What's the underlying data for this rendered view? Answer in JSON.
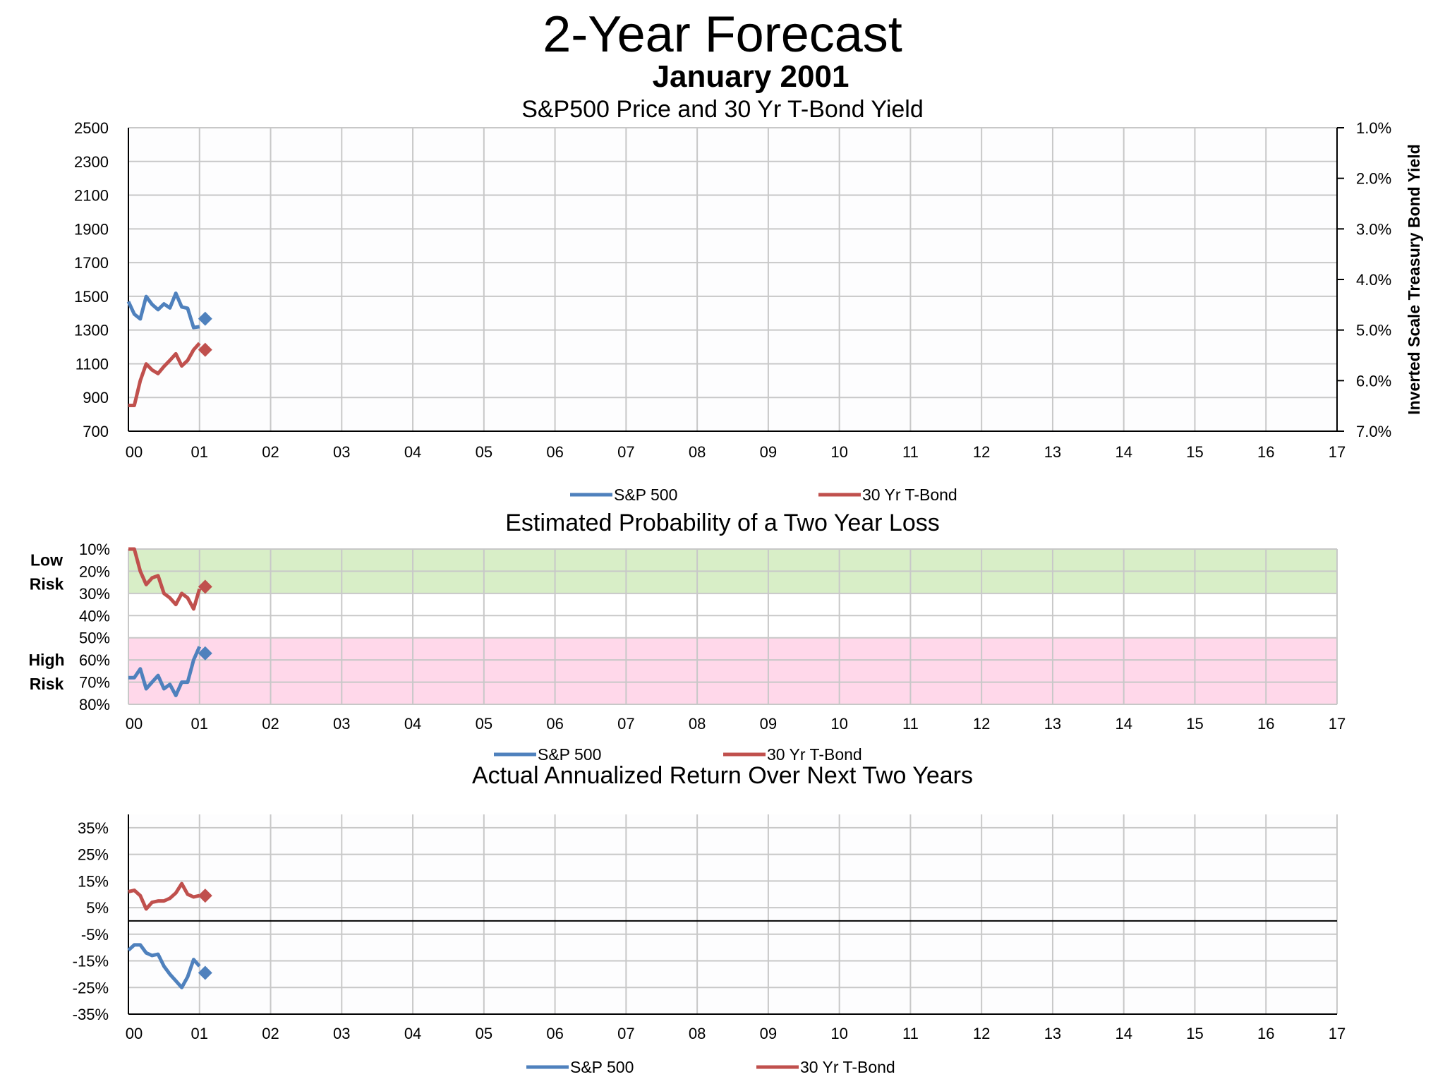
{
  "title": "2-Year Forecast",
  "subtitle": "January 2001",
  "colors": {
    "sp500": "#4f81bd",
    "tbond": "#c0504d",
    "grid": "#c8c8c8",
    "low_risk_band": "#d8eec7",
    "high_risk_band": "#ffd8ea"
  },
  "x_ticks": [
    "00",
    "01",
    "02",
    "03",
    "04",
    "05",
    "06",
    "07",
    "08",
    "09",
    "10",
    "11",
    "12",
    "13",
    "14",
    "15",
    "16",
    "17"
  ],
  "legend": {
    "sp500": "S&P 500",
    "tbond": "30 Yr T-Bond"
  },
  "chart_data": [
    {
      "type": "line",
      "title": "S&P500 Price and 30 Yr T-Bond Yield",
      "xlim": [
        2000.0,
        2017.0
      ],
      "ylim": [
        700,
        2500
      ],
      "y_ticks": [
        "2500",
        "2300",
        "2100",
        "1900",
        "1700",
        "1500",
        "1300",
        "1100",
        "900",
        "700"
      ],
      "y2_label": "Inverted Scale Treasury Bond Yield",
      "y2_ticks": [
        "1.0%",
        "2.0%",
        "3.0%",
        "4.0%",
        "5.0%",
        "6.0%",
        "7.0%"
      ],
      "y2lim": [
        1.0,
        7.0
      ],
      "y2_inverted": true,
      "series": [
        {
          "name": "S&P 500",
          "axis": "left",
          "x": [
            2000.0,
            2000.083,
            2000.167,
            2000.25,
            2000.333,
            2000.417,
            2000.5,
            2000.583,
            2000.667,
            2000.75,
            2000.833,
            2000.917,
            2001.0
          ],
          "values": [
            1469,
            1394,
            1366,
            1499,
            1452,
            1421,
            1455,
            1431,
            1518,
            1437,
            1429,
            1315,
            1320
          ],
          "marker": {
            "x": 2001.08,
            "value": 1367
          }
        },
        {
          "name": "30 Yr T-Bond",
          "axis": "right",
          "x": [
            2000.0,
            2000.083,
            2000.167,
            2000.25,
            2000.333,
            2000.417,
            2000.5,
            2000.583,
            2000.667,
            2000.75,
            2000.833,
            2000.917,
            2001.0
          ],
          "values": [
            6.49,
            6.49,
            6.0,
            5.67,
            5.79,
            5.86,
            5.72,
            5.6,
            5.47,
            5.71,
            5.6,
            5.39,
            5.26
          ],
          "marker": {
            "x": 2001.08,
            "value": 5.39
          }
        }
      ]
    },
    {
      "type": "line",
      "title": "Estimated Probability of a Two Year Loss",
      "xlim": [
        2000.0,
        2017.0
      ],
      "ylim": [
        10,
        80
      ],
      "y_inverted": true,
      "y_ticks": [
        "10%",
        "20%",
        "30%",
        "40%",
        "50%",
        "60%",
        "70%",
        "80%"
      ],
      "zones": [
        {
          "label_lines": [
            "Low",
            "Risk"
          ],
          "from": 10,
          "to": 30
        },
        {
          "label_lines": [
            "High",
            "Risk"
          ],
          "from": 50,
          "to": 80
        }
      ],
      "series": [
        {
          "name": "S&P 500",
          "x": [
            2000.0,
            2000.083,
            2000.167,
            2000.25,
            2000.333,
            2000.417,
            2000.5,
            2000.583,
            2000.667,
            2000.75,
            2000.833,
            2000.917,
            2001.0
          ],
          "values": [
            68,
            68,
            64,
            73,
            70,
            67,
            73,
            71,
            76,
            70,
            70,
            60,
            54
          ],
          "marker": {
            "x": 2001.08,
            "value": 57
          }
        },
        {
          "name": "30 Yr T-Bond",
          "x": [
            2000.0,
            2000.083,
            2000.167,
            2000.25,
            2000.333,
            2000.417,
            2000.5,
            2000.583,
            2000.667,
            2000.75,
            2000.833,
            2000.917,
            2001.0
          ],
          "values": [
            10,
            10,
            20,
            26,
            23,
            22,
            30,
            32,
            35,
            30,
            32,
            37,
            28
          ],
          "marker": {
            "x": 2001.08,
            "value": 27
          }
        }
      ]
    },
    {
      "type": "line",
      "title": "Actual Annualized Return Over Next Two Years",
      "xlim": [
        2000.0,
        2017.0
      ],
      "ylim": [
        -35,
        40
      ],
      "y_ticks": [
        "35%",
        "25%",
        "15%",
        "5%",
        "-5%",
        "-15%",
        "-25%",
        "-35%"
      ],
      "y_tick_values": [
        35,
        25,
        15,
        5,
        -5,
        -15,
        -25,
        -35
      ],
      "series": [
        {
          "name": "S&P 500",
          "x": [
            2000.0,
            2000.083,
            2000.167,
            2000.25,
            2000.333,
            2000.417,
            2000.5,
            2000.583,
            2000.667,
            2000.75,
            2000.833,
            2000.917,
            2001.0
          ],
          "values": [
            -11,
            -9,
            -9,
            -12,
            -13,
            -12.5,
            -17,
            -20,
            -22.5,
            -25,
            -21,
            -14.5,
            -17
          ],
          "marker": {
            "x": 2001.08,
            "value": -19.5
          }
        },
        {
          "name": "30 Yr T-Bond",
          "x": [
            2000.0,
            2000.083,
            2000.167,
            2000.25,
            2000.333,
            2000.417,
            2000.5,
            2000.583,
            2000.667,
            2000.75,
            2000.833,
            2000.917,
            2001.0
          ],
          "values": [
            11,
            11.5,
            9.5,
            4.5,
            7,
            7.5,
            7.5,
            8.5,
            10.5,
            14,
            10,
            9,
            9.5
          ],
          "marker": {
            "x": 2001.08,
            "value": 9.5
          }
        }
      ]
    }
  ]
}
